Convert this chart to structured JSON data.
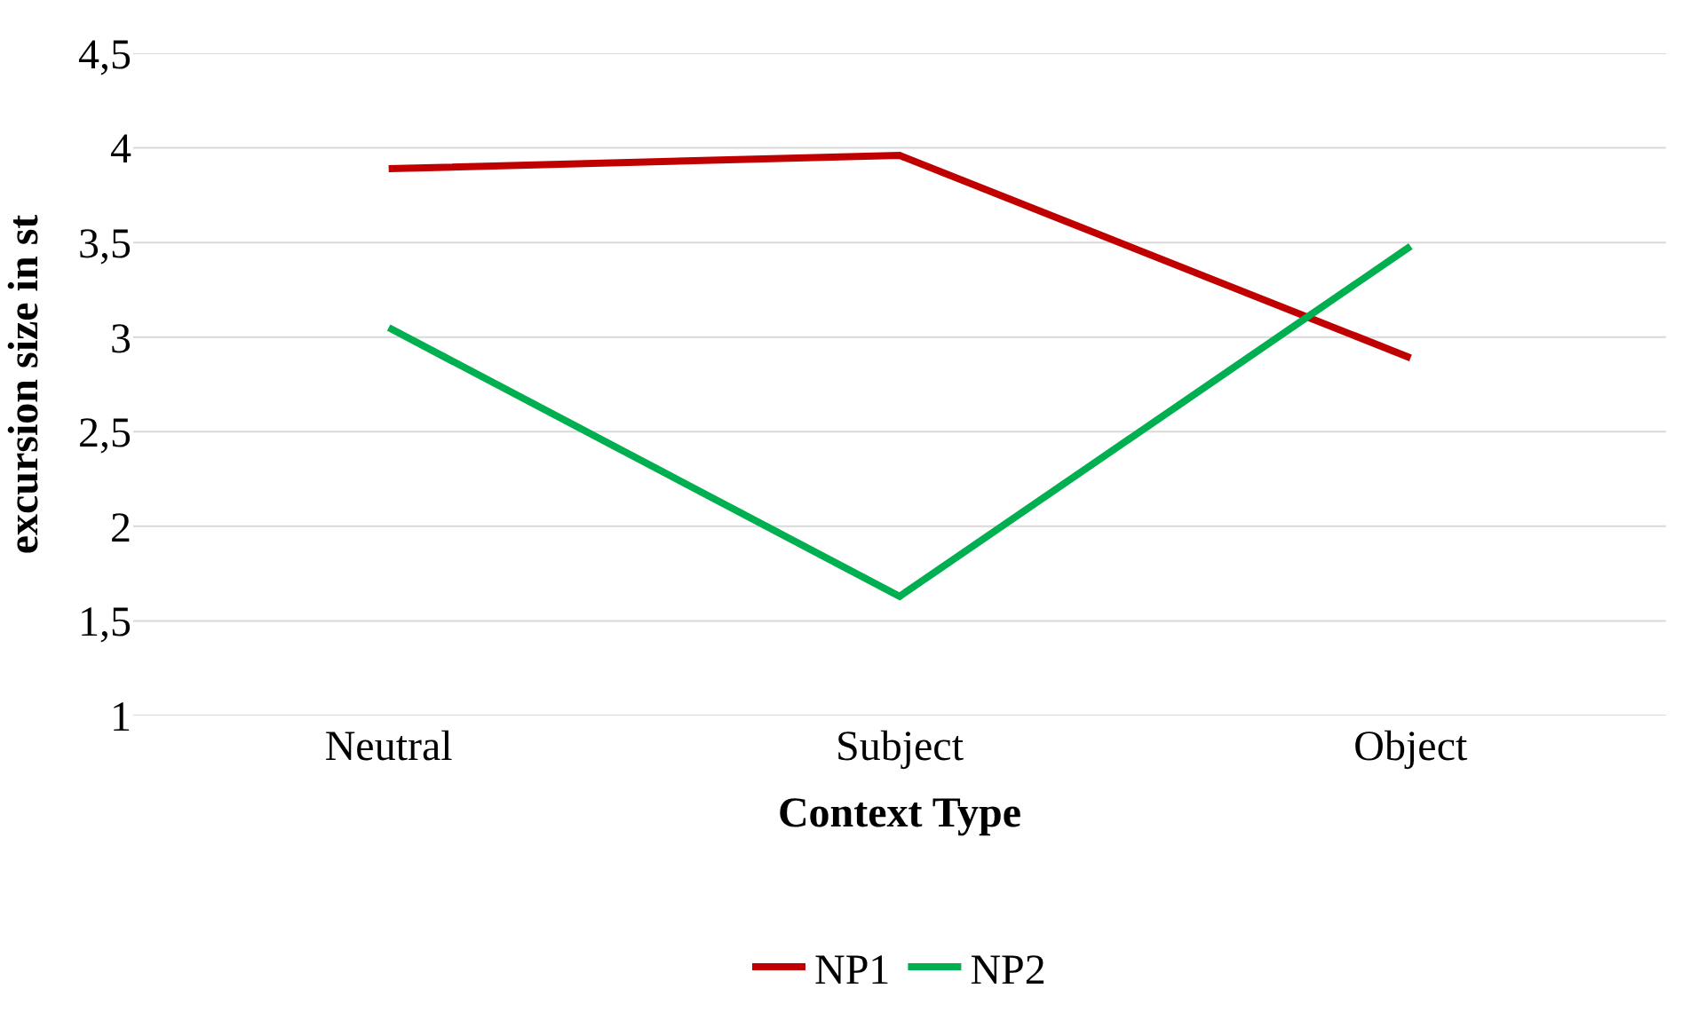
{
  "chart_data": {
    "type": "line",
    "xlabel": "Context Type",
    "ylabel": "excursion size in st",
    "categories": [
      "Neutral",
      "Subject",
      "Object"
    ],
    "series": [
      {
        "name": "NP1",
        "color": "#c00000",
        "values": [
          3.89,
          3.96,
          2.89
        ]
      },
      {
        "name": "NP2",
        "color": "#00b050",
        "values": [
          3.05,
          1.63,
          3.48
        ]
      }
    ],
    "ylim": [
      1,
      4.5
    ],
    "yticks": [
      {
        "value": 1,
        "label": "1"
      },
      {
        "value": 1.5,
        "label": "1,5"
      },
      {
        "value": 2,
        "label": "2"
      },
      {
        "value": 2.5,
        "label": "2,5"
      },
      {
        "value": 3,
        "label": "3"
      },
      {
        "value": 3.5,
        "label": "3,5"
      },
      {
        "value": 4,
        "label": "4"
      },
      {
        "value": 4.5,
        "label": "4,5"
      }
    ],
    "grid": "y",
    "legend": "bottom",
    "marker": "none",
    "line_style": "solid"
  }
}
